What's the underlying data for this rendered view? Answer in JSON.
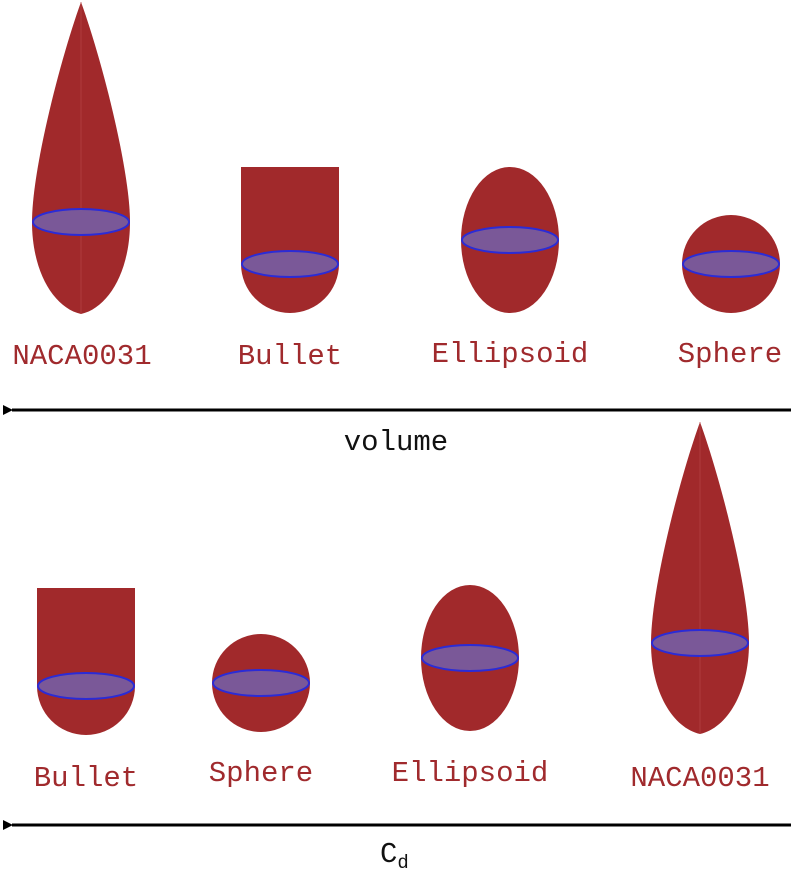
{
  "colors": {
    "body": "#a1292b",
    "seam": "#b84a4c",
    "disk_fill": "#7a5898",
    "disk_stroke": "#2b2bd6",
    "label": "#a02a2d",
    "arrow": "#000000"
  },
  "top_row": {
    "shapes": [
      {
        "icon": "naca0031-shape-icon",
        "label": "NACA0031"
      },
      {
        "icon": "bullet-shape-icon",
        "label": "Bullet"
      },
      {
        "icon": "ellipsoid-shape-icon",
        "label": "Ellipsoid"
      },
      {
        "icon": "sphere-shape-icon",
        "label": "Sphere"
      }
    ],
    "axis": {
      "label": "volume",
      "direction": "left"
    }
  },
  "bottom_row": {
    "shapes": [
      {
        "icon": "bullet-shape-icon",
        "label": "Bullet"
      },
      {
        "icon": "sphere-shape-icon",
        "label": "Sphere"
      },
      {
        "icon": "ellipsoid-shape-icon",
        "label": "Ellipsoid"
      },
      {
        "icon": "naca0031-shape-icon",
        "label": "NACA0031"
      }
    ],
    "axis": {
      "label": "C",
      "label_subscript": "d",
      "direction": "left"
    }
  }
}
